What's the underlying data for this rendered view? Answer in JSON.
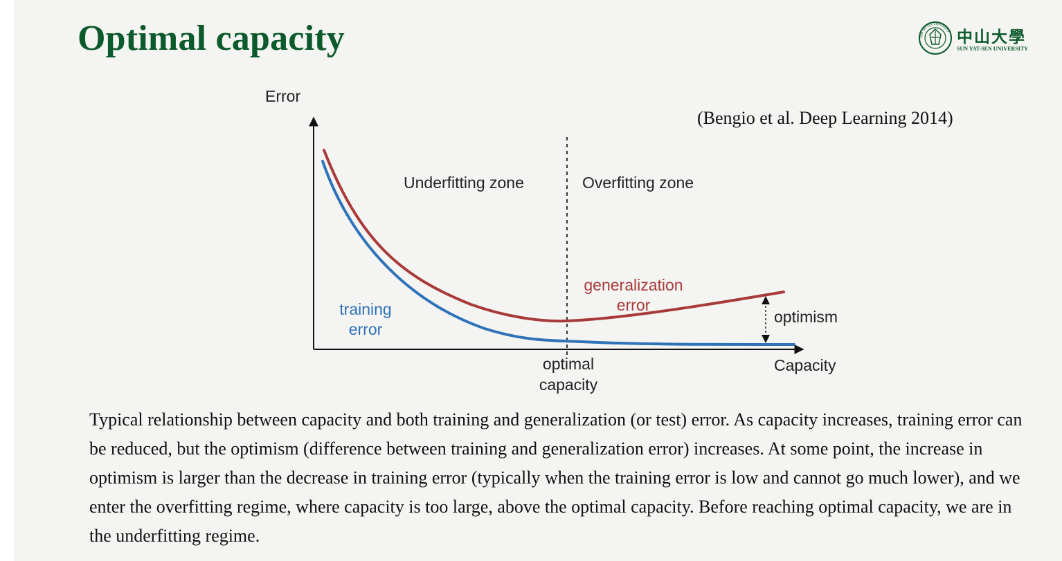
{
  "slide": {
    "title": "Optimal capacity",
    "citation": "(Bengio et al. Deep Learning 2014)",
    "caption": "Typical relationship between capacity and both training and generalization (or test) error. As capacity increases, training error can be reduced, but the optimism (difference between training and generalization error) increases. At some point, the increase in optimism is larger than the decrease in training error (typically when the training error is low and cannot go much lower), and we enter the overfitting regime, where capacity is too large, above the optimal capacity. Before reaching optimal capacity, we are in the underfitting regime."
  },
  "logo": {
    "name": "中山大學",
    "subtitle": "SUN YAT-SEN UNIVERSITY",
    "seal_text": "SUN YAT-SEN UNIVERSITY",
    "icon": "university-seal-icon"
  },
  "diagram": {
    "y_axis_label": "Error",
    "x_axis_label": "Capacity",
    "underfitting_label": "Underfitting zone",
    "overfitting_label": "Overfitting zone",
    "generalization_label_line1": "generalization",
    "generalization_label_line2": "error",
    "training_label_line1": "training",
    "training_label_line2": "error",
    "optimism_label": "optimism",
    "optimal_label_line1": "optimal",
    "optimal_label_line2": "capacity",
    "colors": {
      "training_curve": "#2f72b8",
      "generalization_curve": "#a83a3a",
      "axis": "#111111",
      "title": "#0c5a2c"
    }
  }
}
